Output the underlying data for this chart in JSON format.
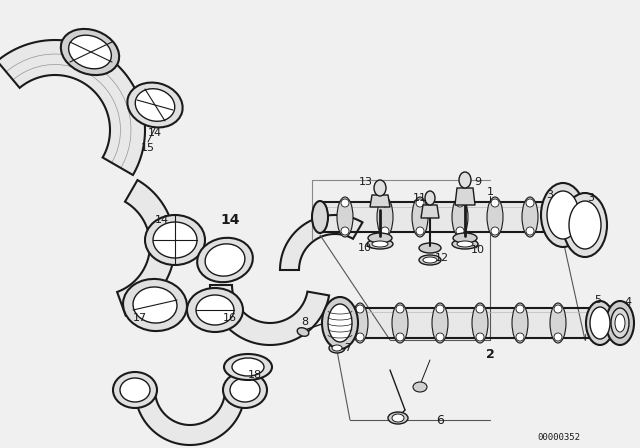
{
  "background_color": "#f0f0f0",
  "diagram_color": "#1a1a1a",
  "part_number_label": "00000352",
  "figsize": [
    6.4,
    4.48
  ],
  "dpi": 100,
  "gray_bg": "#d8d8d8",
  "white": "#ffffff",
  "light_gray": "#c8c8c8"
}
